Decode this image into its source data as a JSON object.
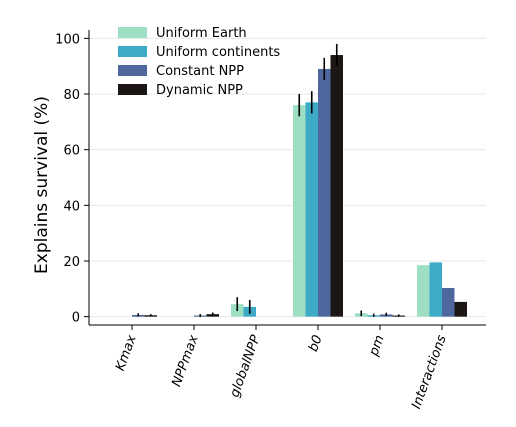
{
  "chart_data": {
    "type": "bar",
    "title": "",
    "xlabel": "",
    "ylabel": "Explains survival (%)",
    "ylim": [
      -3,
      103
    ],
    "yticks": [
      0,
      20,
      40,
      60,
      80,
      100
    ],
    "grid": true,
    "legend_position": "top-left",
    "categories": [
      "Kmax",
      "NPPmax",
      "globalNPP",
      "b0",
      "pm",
      "Interactions"
    ],
    "series": [
      {
        "name": "Uniform Earth",
        "color": "#9edfc4",
        "values": [
          0,
          0,
          4.5,
          76,
          1.2,
          18.5
        ],
        "errors": [
          0,
          0,
          2.5,
          4,
          1.0,
          0
        ]
      },
      {
        "name": "Uniform continents",
        "color": "#3eabc6",
        "values": [
          0,
          0,
          3.5,
          77,
          0.5,
          19.5
        ],
        "errors": [
          0,
          0,
          2.5,
          4,
          0.6,
          0
        ]
      },
      {
        "name": "Constant NPP",
        "color": "#4e689e",
        "values": [
          0.6,
          0.4,
          0,
          89,
          0.8,
          10.3
        ],
        "errors": [
          0.6,
          0.5,
          0,
          4,
          0.6,
          0
        ]
      },
      {
        "name": "Dynamic NPP",
        "color": "#1c1615",
        "values": [
          0.5,
          0.9,
          0,
          94,
          0.4,
          5.3
        ],
        "errors": [
          0.4,
          0.6,
          0,
          4,
          0.4,
          0
        ]
      }
    ]
  }
}
